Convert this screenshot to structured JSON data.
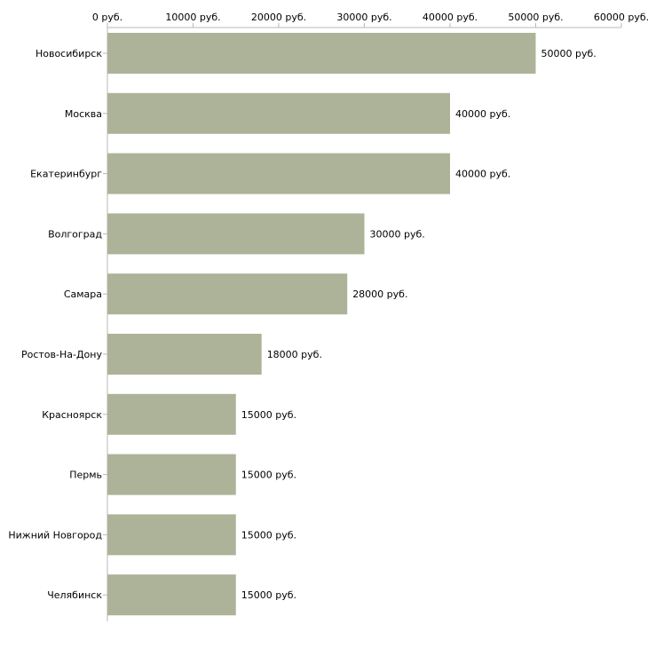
{
  "colors": {
    "bar": "#adb398",
    "axis": "#b8b8b8",
    "text": "#000000"
  },
  "chart_data": {
    "type": "bar",
    "orientation": "horizontal",
    "title": "",
    "xlabel": "",
    "ylabel": "",
    "unit": "руб.",
    "xlim": [
      0,
      60000
    ],
    "ticks": [
      0,
      10000,
      20000,
      30000,
      40000,
      50000,
      60000
    ],
    "tick_labels": [
      "0 руб.",
      "10000 руб.",
      "20000 руб.",
      "30000 руб.",
      "40000 руб.",
      "50000 руб.",
      "60000 руб."
    ],
    "axis_position": "top",
    "grid": false,
    "categories": [
      "Новосибирск",
      "Москва",
      "Екатеринбург",
      "Волгоград",
      "Самара",
      "Ростов-На-Дону",
      "Красноярск",
      "Пермь",
      "Нижний Новгород",
      "Челябинск"
    ],
    "values": [
      50000,
      40000,
      40000,
      30000,
      28000,
      18000,
      15000,
      15000,
      15000,
      15000
    ],
    "value_labels": [
      "50000 руб.",
      "40000 руб.",
      "40000 руб.",
      "30000 руб.",
      "28000 руб.",
      "18000 руб.",
      "15000 руб.",
      "15000 руб.",
      "15000 руб.",
      "15000 руб."
    ]
  }
}
